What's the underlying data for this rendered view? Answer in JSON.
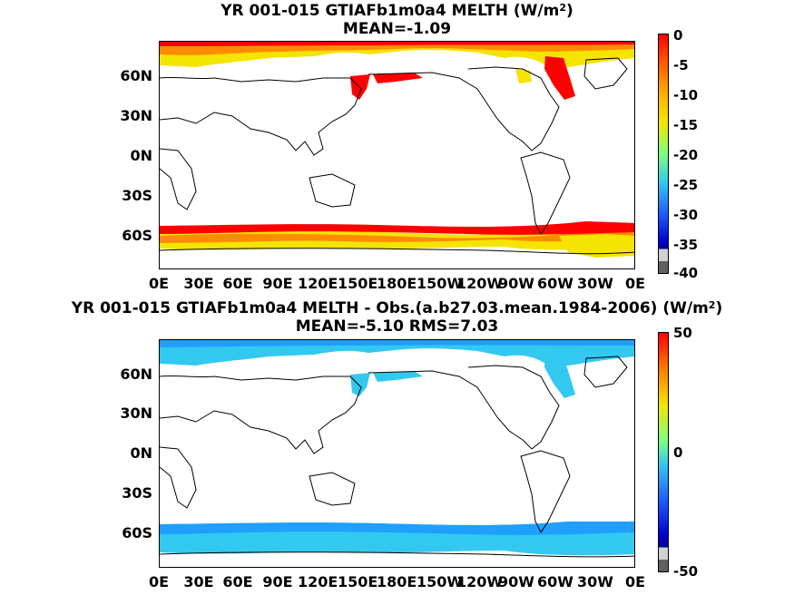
{
  "top_map": {
    "title_prefix": "YR 001-015 GTIAFb1m0a4  MELTH (W/m",
    "title_sup": "2",
    "title_suffix": ")",
    "subtitle": "MEAN=-1.09",
    "lat_labels": [
      "60N",
      "30N",
      "0N",
      "30S",
      "60S"
    ],
    "lon_labels": [
      "0E",
      "30E",
      "60E",
      "90E",
      "120E",
      "150E",
      "180E",
      "150W",
      "120W",
      "90W",
      "60W",
      "30W",
      "0E"
    ],
    "colorbar_labels": [
      "0",
      "-5",
      "-10",
      "-15",
      "-20",
      "-25",
      "-30",
      "-35",
      "-40"
    ],
    "colorbar_range": [
      -40,
      0
    ]
  },
  "bottom_map": {
    "title_prefix": "YR 001-015 GTIAFb1m0a4 MELTH - Obs.(a.b27.03.mean.1984-2006) (W/m",
    "title_sup": "2",
    "title_suffix": ")",
    "subtitle": "MEAN=-5.10 RMS=7.03",
    "lat_labels": [
      "60N",
      "30N",
      "0N",
      "30S",
      "60S"
    ],
    "lon_labels": [
      "0E",
      "30E",
      "60E",
      "90E",
      "120E",
      "150E",
      "180E",
      "150W",
      "120W",
      "90W",
      "60W",
      "30W",
      "0E"
    ],
    "colorbar_labels": [
      "50",
      "0",
      "-50"
    ],
    "colorbar_range": [
      -50,
      50
    ]
  },
  "colors": {
    "jet_top": "#ff0000",
    "orange": "#ff8c00",
    "yellow": "#f4e400",
    "cyan": "#33c8f0",
    "blue": "#1f5fff",
    "navy": "#00008b",
    "grey": "#a0a0a0",
    "dark_grey": "#606060"
  }
}
